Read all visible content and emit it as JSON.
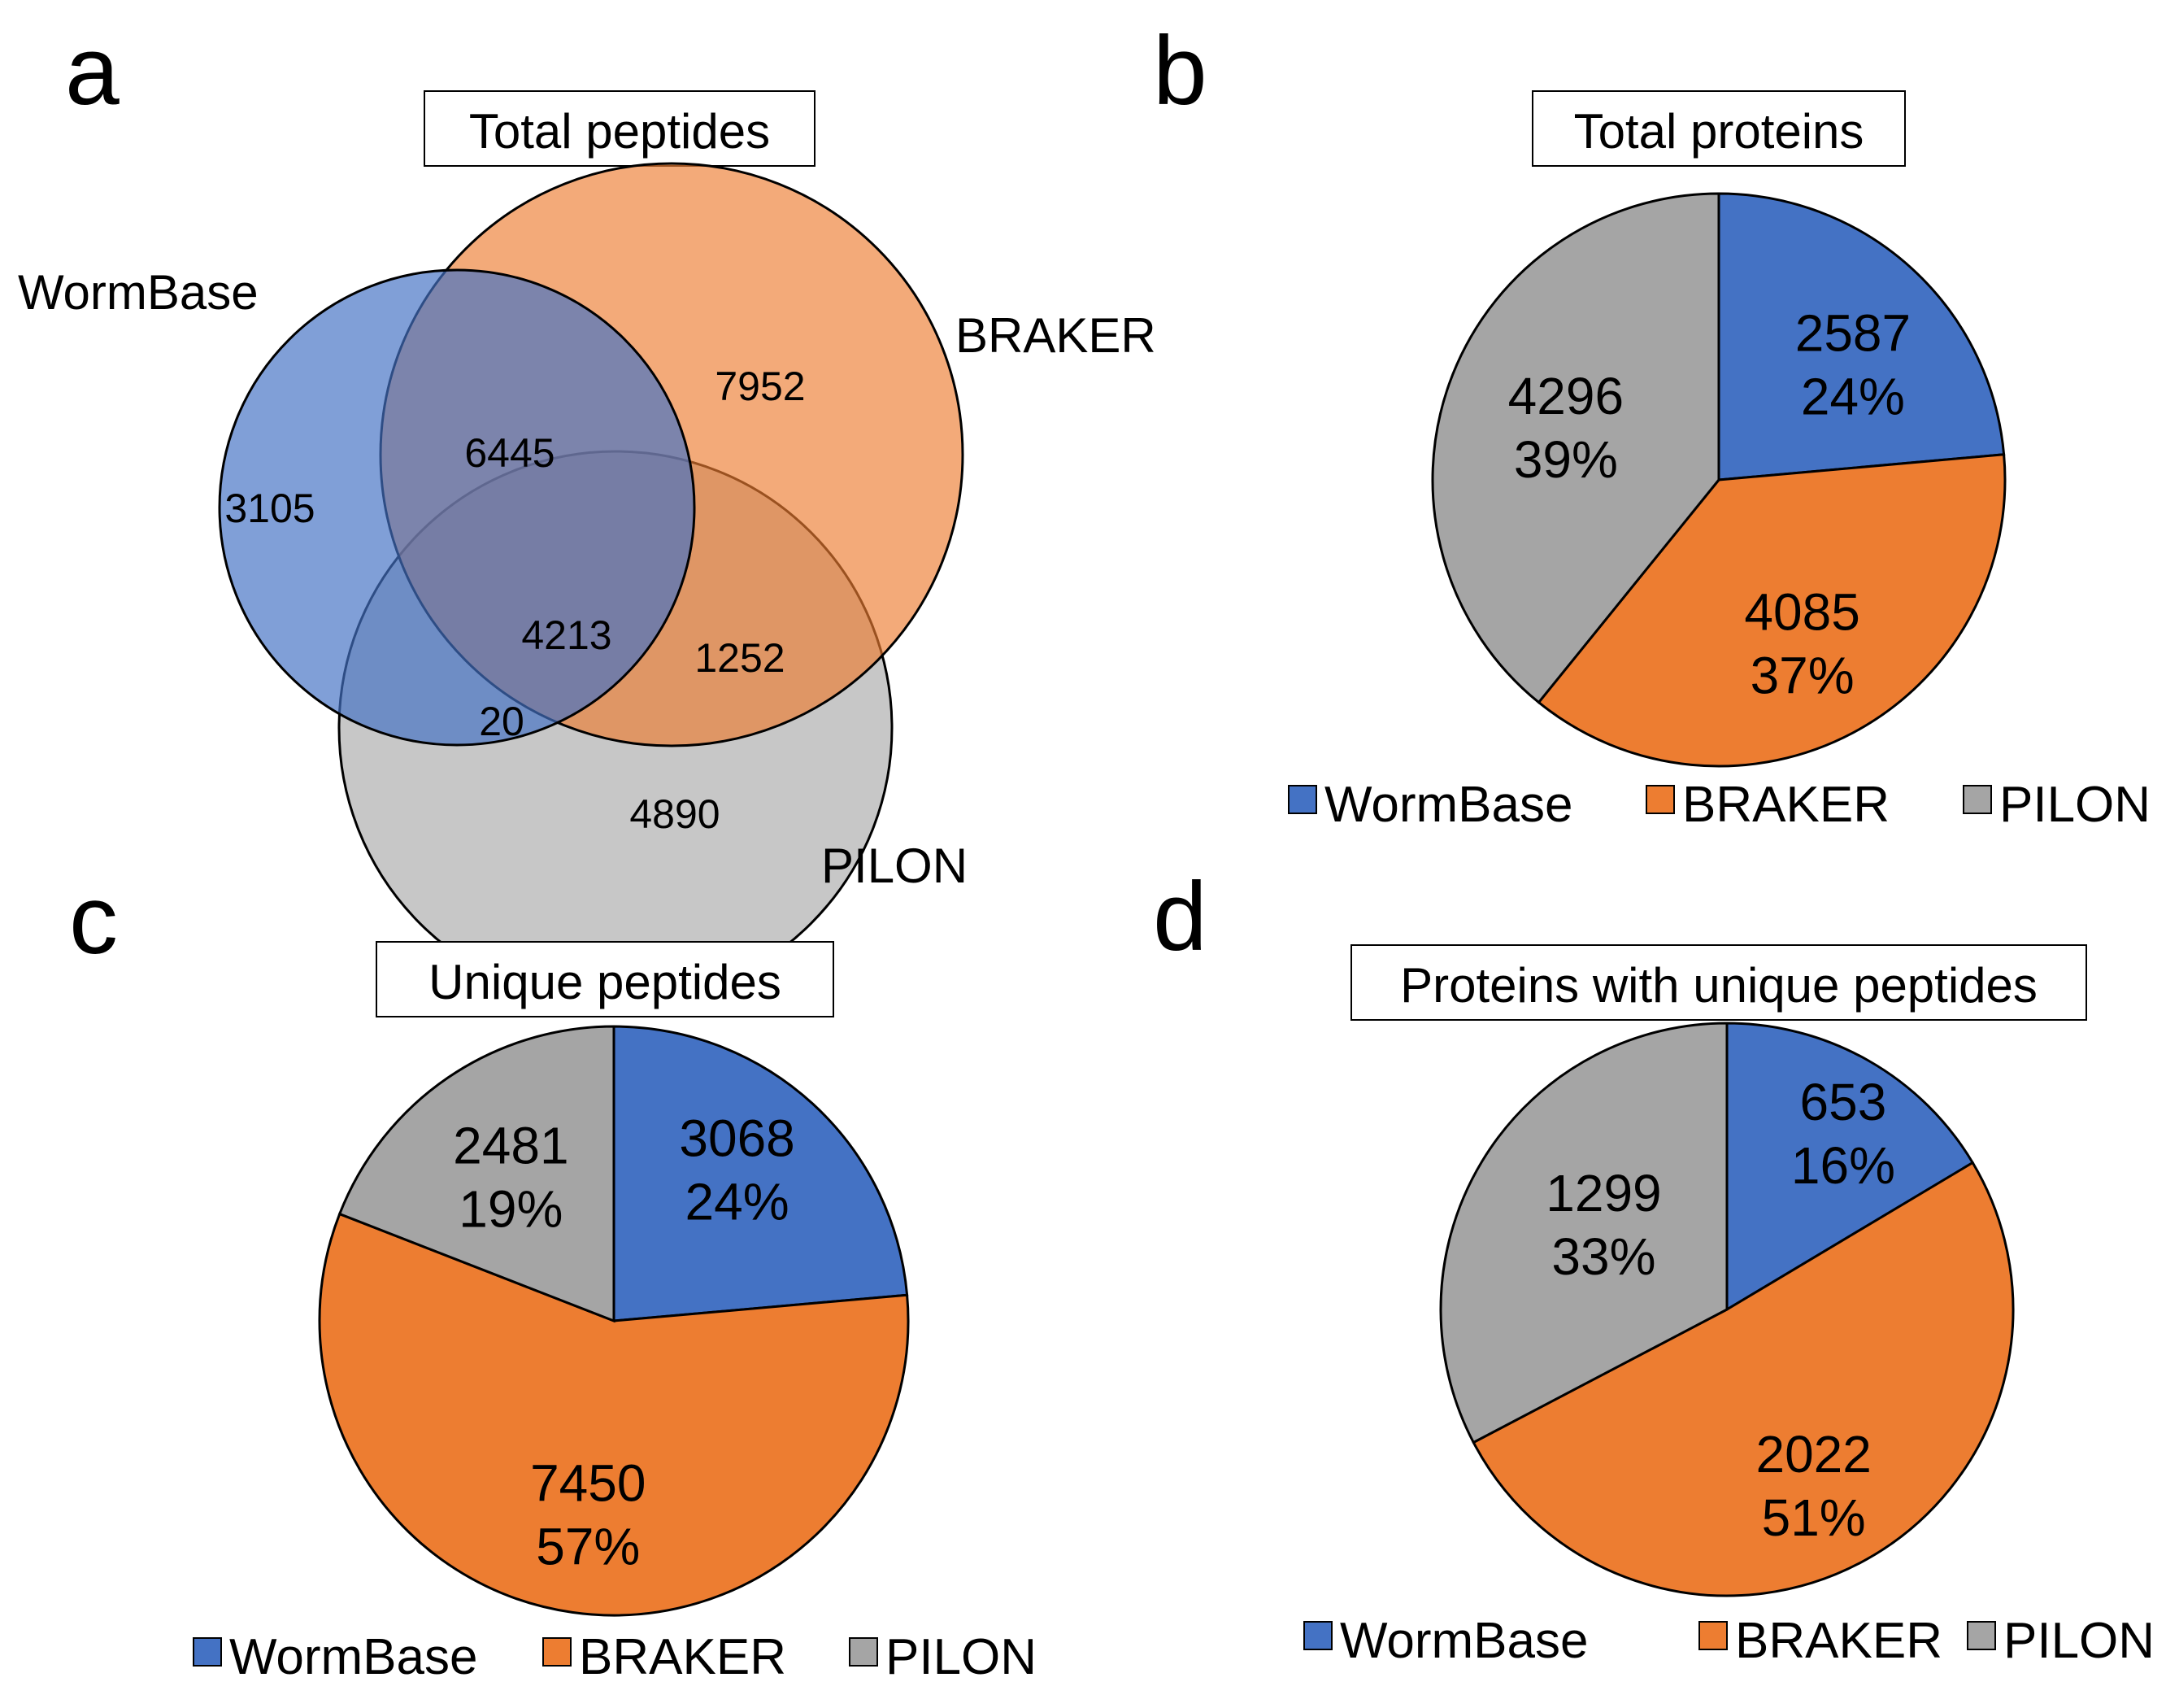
{
  "colors": {
    "WormBase": "#4472C4",
    "BRAKER": "#ED7D31",
    "PILON": "#A5A5A5"
  },
  "chart_data": [
    {
      "type": "venn",
      "panel": "a",
      "title": "Total peptides",
      "sets": [
        "WormBase",
        "BRAKER",
        "PILON"
      ],
      "regions": {
        "WormBase_only": "3105",
        "BRAKER_only": "7952",
        "PILON_only": "4890",
        "WormBase_BRAKER": "6445",
        "BRAKER_PILON": "1252",
        "WormBase_PILON": "20",
        "all_three": "4213"
      }
    },
    {
      "type": "pie",
      "panel": "b",
      "title": "Total proteins",
      "categories": [
        "WormBase",
        "BRAKER",
        "PILON"
      ],
      "values": [
        2587,
        4085,
        4296
      ],
      "percent_labels": [
        "24%",
        "37%",
        "39%"
      ],
      "legend": [
        "WormBase",
        "BRAKER",
        "PILON"
      ]
    },
    {
      "type": "pie",
      "panel": "c",
      "title": "Unique peptides",
      "categories": [
        "WormBase",
        "BRAKER",
        "PILON"
      ],
      "values": [
        3068,
        7450,
        2481
      ],
      "percent_labels": [
        "24%",
        "57%",
        "19%"
      ],
      "legend": [
        "WormBase",
        "BRAKER",
        "PILON"
      ]
    },
    {
      "type": "pie",
      "panel": "d",
      "title": "Proteins with unique peptides",
      "categories": [
        "WormBase",
        "BRAKER",
        "PILON"
      ],
      "values": [
        653,
        2022,
        1299
      ],
      "percent_labels": [
        "16%",
        "51%",
        "33%"
      ],
      "legend": [
        "WormBase",
        "BRAKER",
        "PILON"
      ]
    }
  ]
}
